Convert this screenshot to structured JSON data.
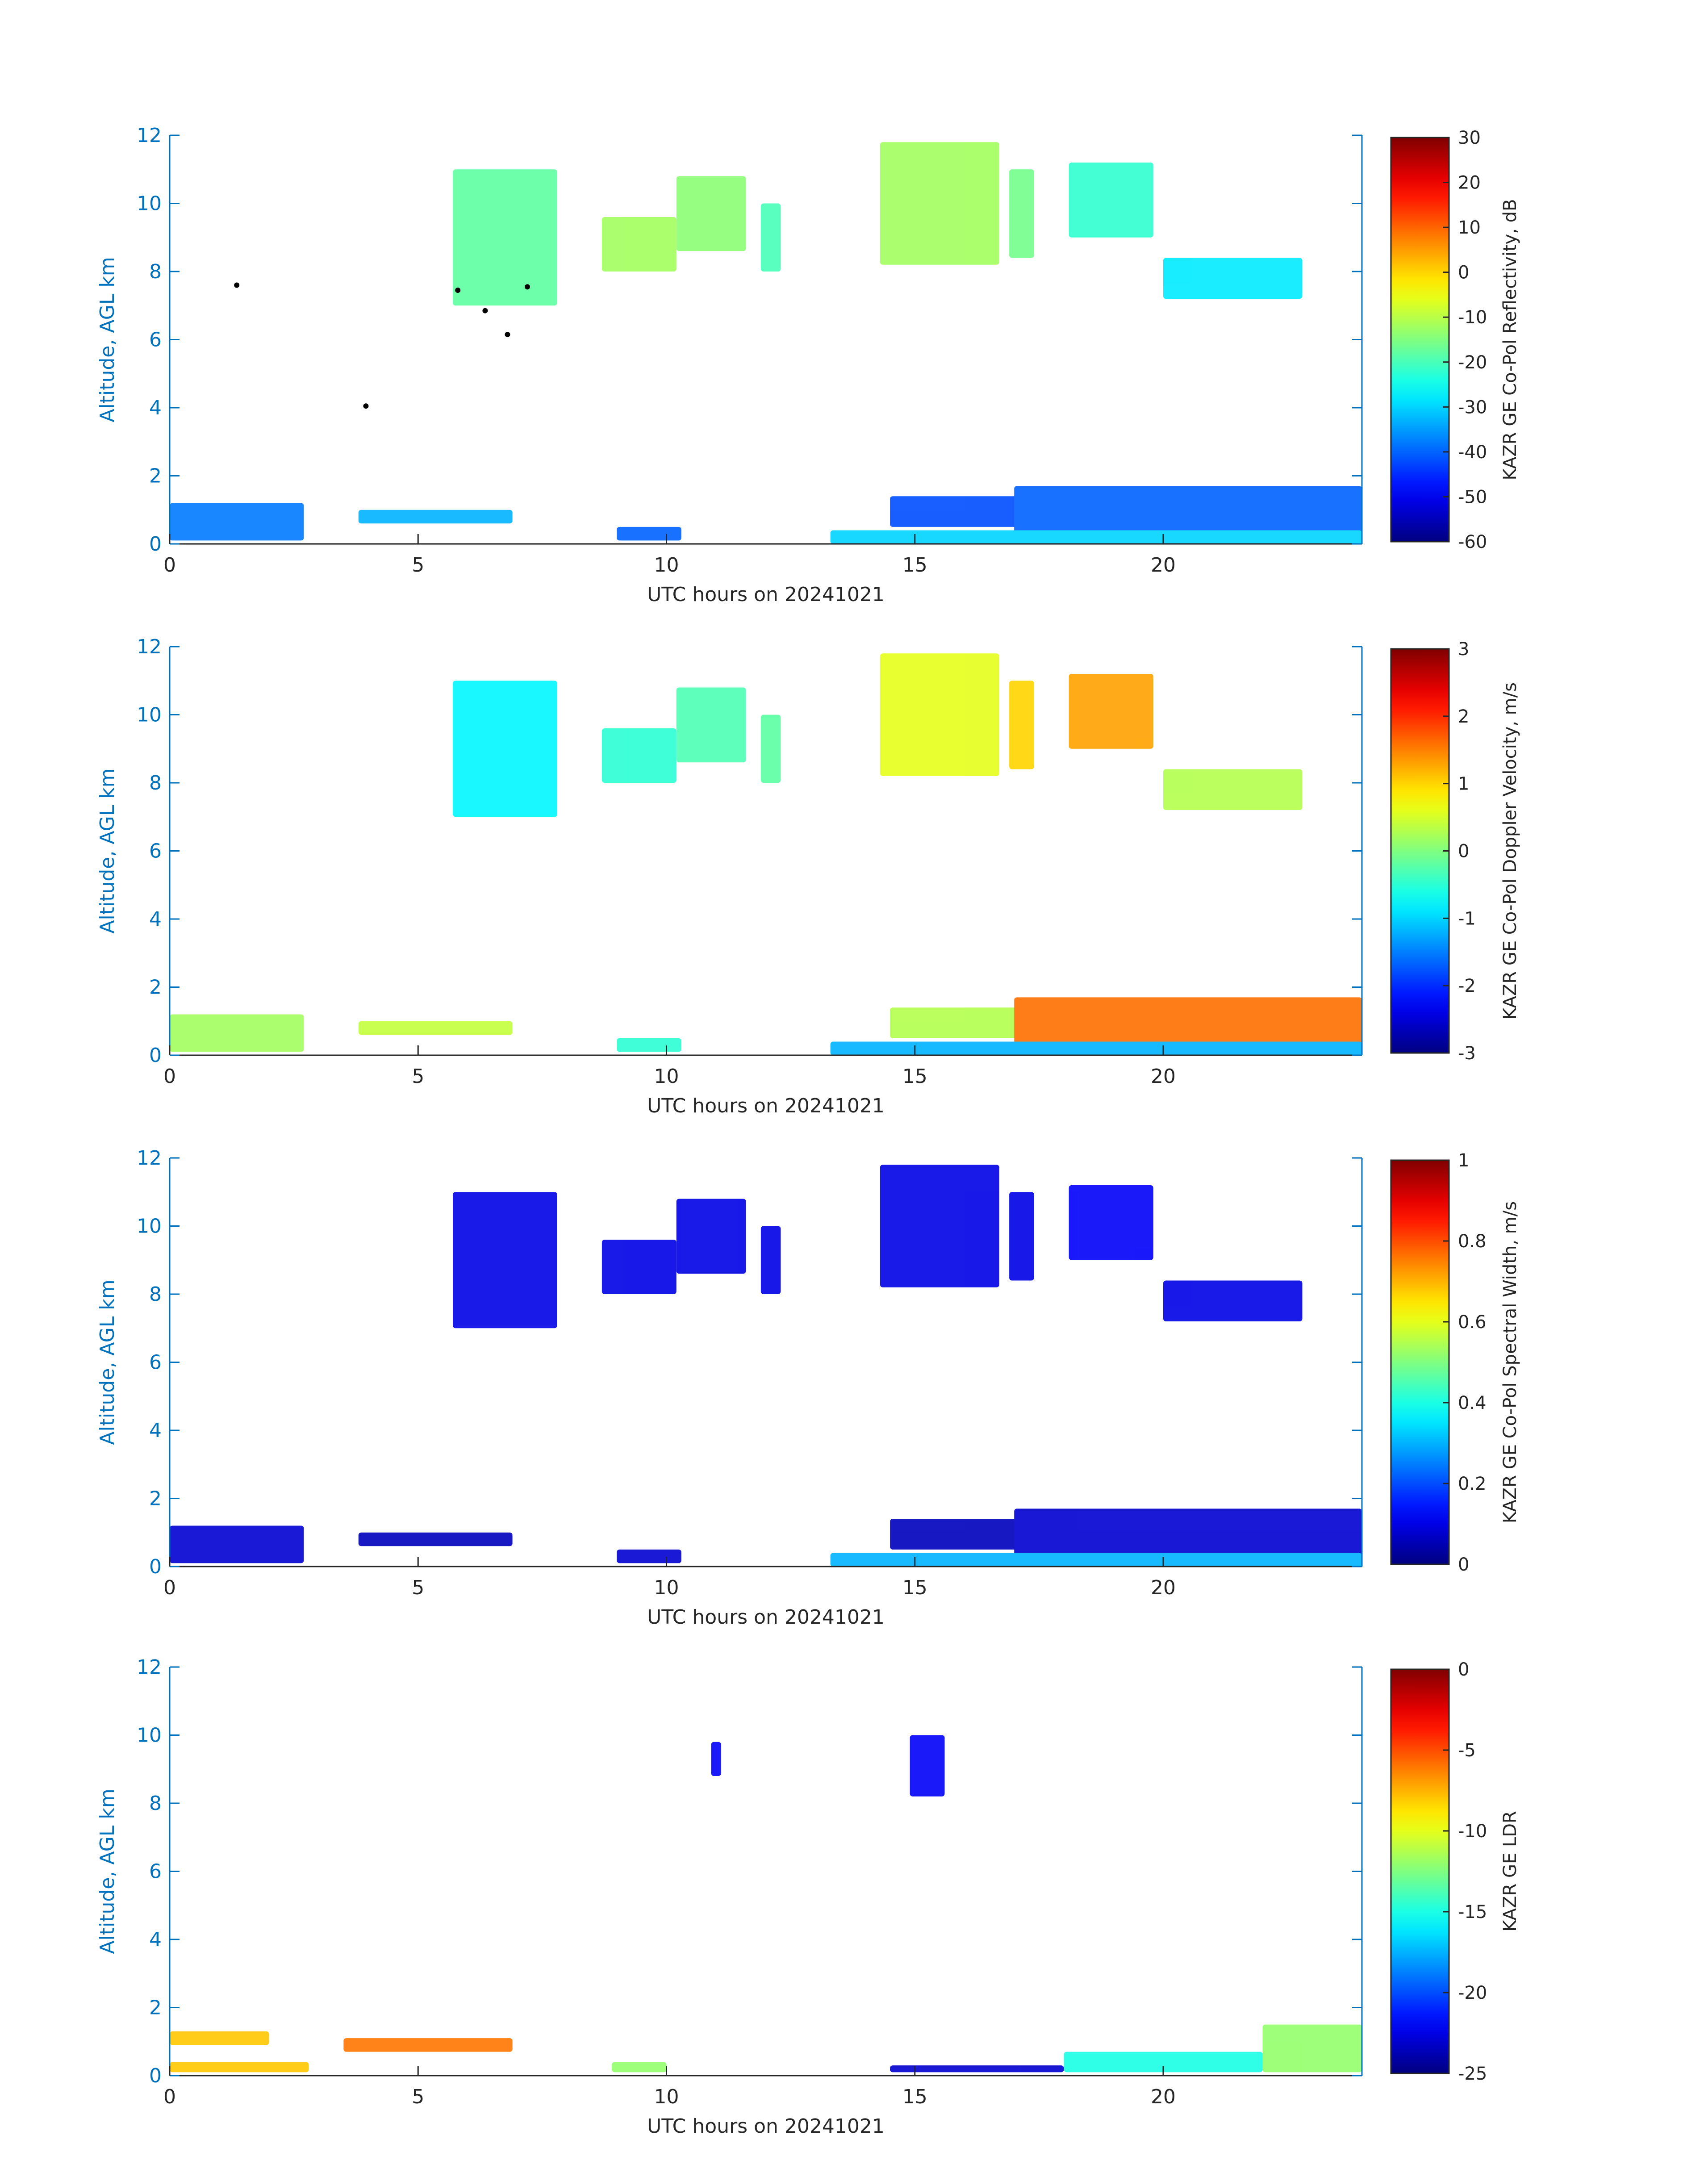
{
  "figure": {
    "xlabel": "UTC hours on 20241021",
    "ylabel": "Altitude, AGL km",
    "axis_color": "#0072bd",
    "x_ticks": [
      "0",
      "5",
      "10",
      "15",
      "20"
    ],
    "y_ticks": [
      "0",
      "2",
      "4",
      "6",
      "8",
      "10",
      "12"
    ]
  },
  "chart_data": [
    {
      "type": "heatmap",
      "title": "",
      "xlabel": "UTC hours on 20241021",
      "ylabel": "Altitude, AGL km",
      "xlim": [
        0,
        24
      ],
      "ylim": [
        0,
        12
      ],
      "colorbar": {
        "label": "KAZR GE Co-Pol Reflectivity, dB",
        "range": [
          -60,
          30
        ],
        "ticks": [
          "-60",
          "-50",
          "-40",
          "-30",
          "-20",
          "-10",
          "0",
          "10",
          "20",
          "30"
        ],
        "colormap": "jet"
      },
      "regions": [
        {
          "x": [
            5.7,
            7.8
          ],
          "y": [
            7.0,
            11.0
          ],
          "level": -18
        },
        {
          "x": [
            8.7,
            10.2
          ],
          "y": [
            8.0,
            9.6
          ],
          "level": -12
        },
        {
          "x": [
            10.2,
            11.6
          ],
          "y": [
            8.6,
            10.8
          ],
          "level": -14
        },
        {
          "x": [
            11.9,
            12.3
          ],
          "y": [
            8.0,
            10.0
          ],
          "level": -20
        },
        {
          "x": [
            14.3,
            16.7
          ],
          "y": [
            8.2,
            11.8
          ],
          "level": -12
        },
        {
          "x": [
            16.9,
            17.4
          ],
          "y": [
            8.4,
            11.0
          ],
          "level": -16
        },
        {
          "x": [
            18.1,
            19.8
          ],
          "y": [
            9.0,
            11.2
          ],
          "level": -22
        },
        {
          "x": [
            20.0,
            22.8
          ],
          "y": [
            7.2,
            8.4
          ],
          "level": -28
        },
        {
          "x": [
            0.0,
            2.7
          ],
          "y": [
            0.1,
            1.2
          ],
          "level": -38
        },
        {
          "x": [
            3.8,
            6.9
          ],
          "y": [
            0.6,
            1.0
          ],
          "level": -33
        },
        {
          "x": [
            9.0,
            10.3
          ],
          "y": [
            0.1,
            0.5
          ],
          "level": -40
        },
        {
          "x": [
            14.5,
            17.5
          ],
          "y": [
            0.5,
            1.4
          ],
          "level": -42
        },
        {
          "x": [
            17.0,
            24.0
          ],
          "y": [
            0.1,
            1.7
          ],
          "level": -40
        },
        {
          "x": [
            13.3,
            24.0
          ],
          "y": [
            0.0,
            0.4
          ],
          "level": -30
        }
      ],
      "markers": [
        {
          "x": 1.35,
          "y": 7.6
        },
        {
          "x": 3.95,
          "y": 4.05
        },
        {
          "x": 5.8,
          "y": 7.45
        },
        {
          "x": 6.35,
          "y": 6.85
        },
        {
          "x": 6.8,
          "y": 6.15
        },
        {
          "x": 7.2,
          "y": 7.55
        }
      ]
    },
    {
      "type": "heatmap",
      "title": "",
      "xlabel": "UTC hours on 20241021",
      "ylabel": "Altitude, AGL km",
      "xlim": [
        0,
        24
      ],
      "ylim": [
        0,
        12
      ],
      "colorbar": {
        "label": "KAZR GE Co-Pol Doppler Velocity, m/s",
        "range": [
          -3,
          3
        ],
        "ticks": [
          "-3",
          "-2",
          "-1",
          "0",
          "1",
          "2",
          "3"
        ],
        "colormap": "jet"
      },
      "regions": [
        {
          "x": [
            5.7,
            7.8
          ],
          "y": [
            7.0,
            11.0
          ],
          "level": -0.8
        },
        {
          "x": [
            8.7,
            10.2
          ],
          "y": [
            8.0,
            9.6
          ],
          "level": -0.5
        },
        {
          "x": [
            10.2,
            11.6
          ],
          "y": [
            8.6,
            10.8
          ],
          "level": -0.3
        },
        {
          "x": [
            11.9,
            12.3
          ],
          "y": [
            8.0,
            10.0
          ],
          "level": -0.2
        },
        {
          "x": [
            14.3,
            16.7
          ],
          "y": [
            8.2,
            11.8
          ],
          "level": 0.6
        },
        {
          "x": [
            16.9,
            17.4
          ],
          "y": [
            8.4,
            11.0
          ],
          "level": 1.0
        },
        {
          "x": [
            18.1,
            19.8
          ],
          "y": [
            9.0,
            11.2
          ],
          "level": 1.3
        },
        {
          "x": [
            20.0,
            22.8
          ],
          "y": [
            7.2,
            8.4
          ],
          "level": 0.3
        },
        {
          "x": [
            0.0,
            2.7
          ],
          "y": [
            0.1,
            1.2
          ],
          "level": 0.2
        },
        {
          "x": [
            3.8,
            6.9
          ],
          "y": [
            0.6,
            1.0
          ],
          "level": 0.4
        },
        {
          "x": [
            9.0,
            10.3
          ],
          "y": [
            0.1,
            0.5
          ],
          "level": -0.5
        },
        {
          "x": [
            14.5,
            17.5
          ],
          "y": [
            0.5,
            1.4
          ],
          "level": 0.3
        },
        {
          "x": [
            17.0,
            24.0
          ],
          "y": [
            0.1,
            1.7
          ],
          "level": 1.6
        },
        {
          "x": [
            13.3,
            24.0
          ],
          "y": [
            0.0,
            0.4
          ],
          "level": -1.2
        }
      ]
    },
    {
      "type": "heatmap",
      "title": "",
      "xlabel": "UTC hours on 20241021",
      "ylabel": "Altitude, AGL km",
      "xlim": [
        0,
        24
      ],
      "ylim": [
        0,
        12
      ],
      "colorbar": {
        "label": "KAZR GE Co-Pol Spectral Width, m/s",
        "range": [
          0,
          1
        ],
        "ticks": [
          "0",
          "0.2",
          "0.4",
          "0.6",
          "0.8",
          "1"
        ],
        "colormap": "jet"
      },
      "regions": [
        {
          "x": [
            5.7,
            7.8
          ],
          "y": [
            7.0,
            11.0
          ],
          "level": 0.1
        },
        {
          "x": [
            8.7,
            10.2
          ],
          "y": [
            8.0,
            9.6
          ],
          "level": 0.1
        },
        {
          "x": [
            10.2,
            11.6
          ],
          "y": [
            8.6,
            10.8
          ],
          "level": 0.1
        },
        {
          "x": [
            11.9,
            12.3
          ],
          "y": [
            8.0,
            10.0
          ],
          "level": 0.1
        },
        {
          "x": [
            14.3,
            16.7
          ],
          "y": [
            8.2,
            11.8
          ],
          "level": 0.1
        },
        {
          "x": [
            16.9,
            17.4
          ],
          "y": [
            8.4,
            11.0
          ],
          "level": 0.1
        },
        {
          "x": [
            18.1,
            19.8
          ],
          "y": [
            9.0,
            11.2
          ],
          "level": 0.12
        },
        {
          "x": [
            20.0,
            22.8
          ],
          "y": [
            7.2,
            8.4
          ],
          "level": 0.1
        },
        {
          "x": [
            0.0,
            2.7
          ],
          "y": [
            0.1,
            1.2
          ],
          "level": 0.08
        },
        {
          "x": [
            3.8,
            6.9
          ],
          "y": [
            0.6,
            1.0
          ],
          "level": 0.06
        },
        {
          "x": [
            9.0,
            10.3
          ],
          "y": [
            0.1,
            0.5
          ],
          "level": 0.08
        },
        {
          "x": [
            14.5,
            17.5
          ],
          "y": [
            0.5,
            1.4
          ],
          "level": 0.06
        },
        {
          "x": [
            17.0,
            24.0
          ],
          "y": [
            0.1,
            1.7
          ],
          "level": 0.08
        },
        {
          "x": [
            13.3,
            24.0
          ],
          "y": [
            0.0,
            0.4
          ],
          "level": 0.3
        }
      ]
    },
    {
      "type": "heatmap",
      "title": "",
      "xlabel": "UTC hours on 20241021",
      "ylabel": "Altitude, AGL km",
      "xlim": [
        0,
        24
      ],
      "ylim": [
        0,
        12
      ],
      "colorbar": {
        "label": "KAZR GE LDR",
        "range": [
          -25,
          0
        ],
        "ticks": [
          "-25",
          "-20",
          "-15",
          "-10",
          "-5",
          "0"
        ],
        "colormap": "jet"
      },
      "regions": [
        {
          "x": [
            0.0,
            2.0
          ],
          "y": [
            0.9,
            1.3
          ],
          "level": -8
        },
        {
          "x": [
            0.0,
            2.8
          ],
          "y": [
            0.1,
            0.4
          ],
          "level": -8
        },
        {
          "x": [
            3.5,
            6.9
          ],
          "y": [
            0.7,
            1.1
          ],
          "level": -6
        },
        {
          "x": [
            8.9,
            10.0
          ],
          "y": [
            0.1,
            0.4
          ],
          "level": -12
        },
        {
          "x": [
            10.9,
            11.1
          ],
          "y": [
            8.8,
            9.8
          ],
          "level": -22
        },
        {
          "x": [
            14.9,
            15.6
          ],
          "y": [
            8.2,
            10.0
          ],
          "level": -22
        },
        {
          "x": [
            14.5,
            18.0
          ],
          "y": [
            0.1,
            0.3
          ],
          "level": -23
        },
        {
          "x": [
            18.0,
            22.0
          ],
          "y": [
            0.1,
            0.7
          ],
          "level": -15
        },
        {
          "x": [
            22.0,
            24.0
          ],
          "y": [
            0.1,
            1.5
          ],
          "level": -12
        }
      ]
    }
  ]
}
